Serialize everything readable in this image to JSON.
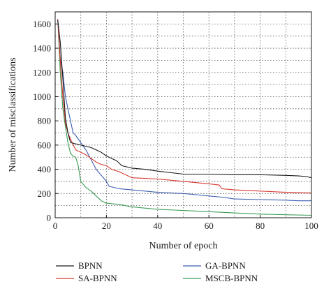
{
  "chart_data": {
    "type": "line",
    "xlabel": "Number of epoch",
    "ylabel": "Number of misclassifications",
    "xlim": [
      0,
      100
    ],
    "ylim": [
      0,
      1700
    ],
    "xticks": [
      0,
      20,
      40,
      60,
      80,
      100
    ],
    "xtick_labels": [
      "0",
      "20",
      "40",
      "60",
      "80",
      "100"
    ],
    "yticks": [
      0,
      200,
      400,
      600,
      800,
      1000,
      1200,
      1400,
      1600
    ],
    "ytick_labels": [
      "0",
      "200",
      "400",
      "600",
      "800",
      "1000",
      "1200",
      "1400",
      "1600"
    ],
    "grid": true,
    "grid_style": "dotted",
    "legend_position": "bottom",
    "series": [
      {
        "name": "BPNN",
        "color": "#1a1a1a",
        "x": [
          1,
          2,
          3,
          4,
          5,
          6,
          8,
          10,
          12,
          14,
          16,
          18,
          20,
          22,
          24,
          26,
          28,
          30,
          35,
          40,
          50,
          60,
          70,
          80,
          90,
          95,
          98,
          100
        ],
        "y": [
          1630,
          1450,
          1150,
          820,
          700,
          620,
          610,
          600,
          590,
          580,
          560,
          540,
          510,
          490,
          470,
          430,
          420,
          410,
          400,
          385,
          360,
          360,
          355,
          355,
          350,
          345,
          340,
          330
        ]
      },
      {
        "name": "SA-BPNN",
        "color": "#d83a30",
        "x": [
          1,
          2,
          3,
          4,
          5,
          6,
          8,
          10,
          12,
          14,
          16,
          18,
          20,
          22,
          25,
          30,
          35,
          40,
          45,
          50,
          55,
          60,
          64,
          65,
          70,
          80,
          90,
          100
        ],
        "y": [
          1640,
          1300,
          1000,
          780,
          700,
          650,
          560,
          540,
          520,
          490,
          460,
          440,
          430,
          400,
          380,
          330,
          325,
          320,
          310,
          300,
          290,
          280,
          270,
          240,
          230,
          220,
          210,
          205
        ]
      },
      {
        "name": "GA-BPNN",
        "color": "#3d5fb0",
        "x": [
          1,
          2,
          3,
          4,
          5,
          6,
          7,
          8,
          10,
          12,
          14,
          16,
          18,
          20,
          21,
          25,
          30,
          40,
          50,
          55,
          60,
          65,
          70,
          80,
          90,
          95,
          100
        ],
        "y": [
          1640,
          1320,
          1200,
          1000,
          900,
          800,
          700,
          680,
          620,
          560,
          480,
          400,
          350,
          300,
          260,
          240,
          230,
          210,
          200,
          190,
          180,
          170,
          155,
          150,
          145,
          140,
          140
        ]
      },
      {
        "name": "MSCB-BPNN",
        "color": "#3c9c57",
        "x": [
          1,
          2,
          3,
          4,
          5,
          6,
          7,
          8,
          9,
          10,
          12,
          14,
          16,
          18,
          20,
          25,
          30,
          40,
          50,
          60,
          70,
          80,
          90,
          100
        ],
        "y": [
          1640,
          1200,
          900,
          750,
          620,
          530,
          510,
          500,
          430,
          300,
          250,
          220,
          180,
          140,
          120,
          110,
          90,
          70,
          60,
          50,
          40,
          30,
          25,
          20
        ]
      }
    ]
  }
}
